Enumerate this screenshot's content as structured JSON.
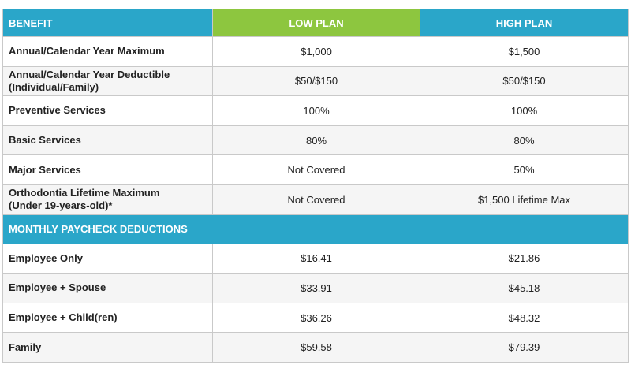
{
  "header": {
    "benefit": "BENEFIT",
    "low_plan": "LOW PLAN",
    "high_plan": "HIGH PLAN"
  },
  "benefits": [
    {
      "label": "Annual/Calendar Year Maximum",
      "low": "$1,000",
      "high": "$1,500"
    },
    {
      "label": "Annual/Calendar Year Deductible\n(Individual/Family)",
      "low": "$50/$150",
      "high": "$50/$150"
    },
    {
      "label": "Preventive Services",
      "low": "100%",
      "high": "100%"
    },
    {
      "label": "Basic Services",
      "low": "80%",
      "high": "80%"
    },
    {
      "label": "Major Services",
      "low": "Not Covered",
      "high": "50%"
    },
    {
      "label": "Orthodontia Lifetime Maximum\n(Under 19-years-old)*",
      "low": "Not Covered",
      "high": "$1,500 Lifetime Max"
    }
  ],
  "section_title": "MONTHLY PAYCHECK DEDUCTIONS",
  "deductions": [
    {
      "label": "Employee Only",
      "low": "$16.41",
      "high": "$21.86"
    },
    {
      "label": "Employee + Spouse",
      "low": "$33.91",
      "high": "$45.18"
    },
    {
      "label": "Employee + Child(ren)",
      "low": "$36.26",
      "high": "$48.32"
    },
    {
      "label": "Family",
      "low": "$59.58",
      "high": "$79.39"
    }
  ],
  "colors": {
    "header_blue": "#2aa6c9",
    "header_green": "#8dc63f"
  }
}
